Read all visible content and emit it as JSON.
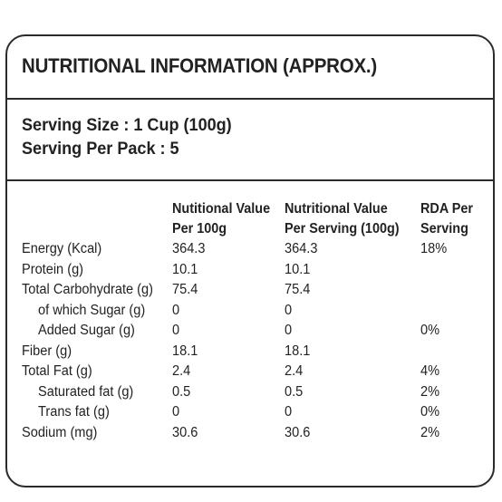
{
  "title": "NUTRITIONAL INFORMATION (APPROX.)",
  "serving": {
    "size": "Serving Size : 1 Cup (100g)",
    "per_pack": "Serving Per Pack : 5"
  },
  "table": {
    "headers": [
      {
        "line1": "Nutitional Value",
        "line2": "Per 100g"
      },
      {
        "line1": "Nutritional Value",
        "line2": "Per Serving (100g)"
      },
      {
        "line1": "RDA Per",
        "line2": "Serving"
      }
    ],
    "rows": [
      {
        "name": "Energy (Kcal)",
        "per100": "364.3",
        "perServing": "364.3",
        "rda": "18%"
      },
      {
        "name": "Protein (g)",
        "per100": "10.1",
        "perServing": "10.1",
        "rda": ""
      },
      {
        "name": "Total Carbohydrate (g)",
        "per100": "75.4",
        "perServing": "75.4",
        "rda": ""
      },
      {
        "name": "of which Sugar (g)",
        "per100": "0",
        "perServing": "0",
        "rda": ""
      },
      {
        "name": "Added Sugar (g)",
        "per100": "0",
        "perServing": "0",
        "rda": "0%"
      },
      {
        "name": "Fiber (g)",
        "per100": "18.1",
        "perServing": "18.1",
        "rda": ""
      },
      {
        "name": "Total Fat (g)",
        "per100": "2.4",
        "perServing": "2.4",
        "rda": "4%"
      },
      {
        "name": "Saturated fat (g)",
        "per100": "0.5",
        "perServing": "0.5",
        "rda": "2%"
      },
      {
        "name": "Trans fat (g)",
        "per100": "0",
        "perServing": "0",
        "rda": "0%"
      },
      {
        "name": "Sodium (mg)",
        "per100": "30.6",
        "perServing": "30.6",
        "rda": "2%"
      }
    ]
  }
}
